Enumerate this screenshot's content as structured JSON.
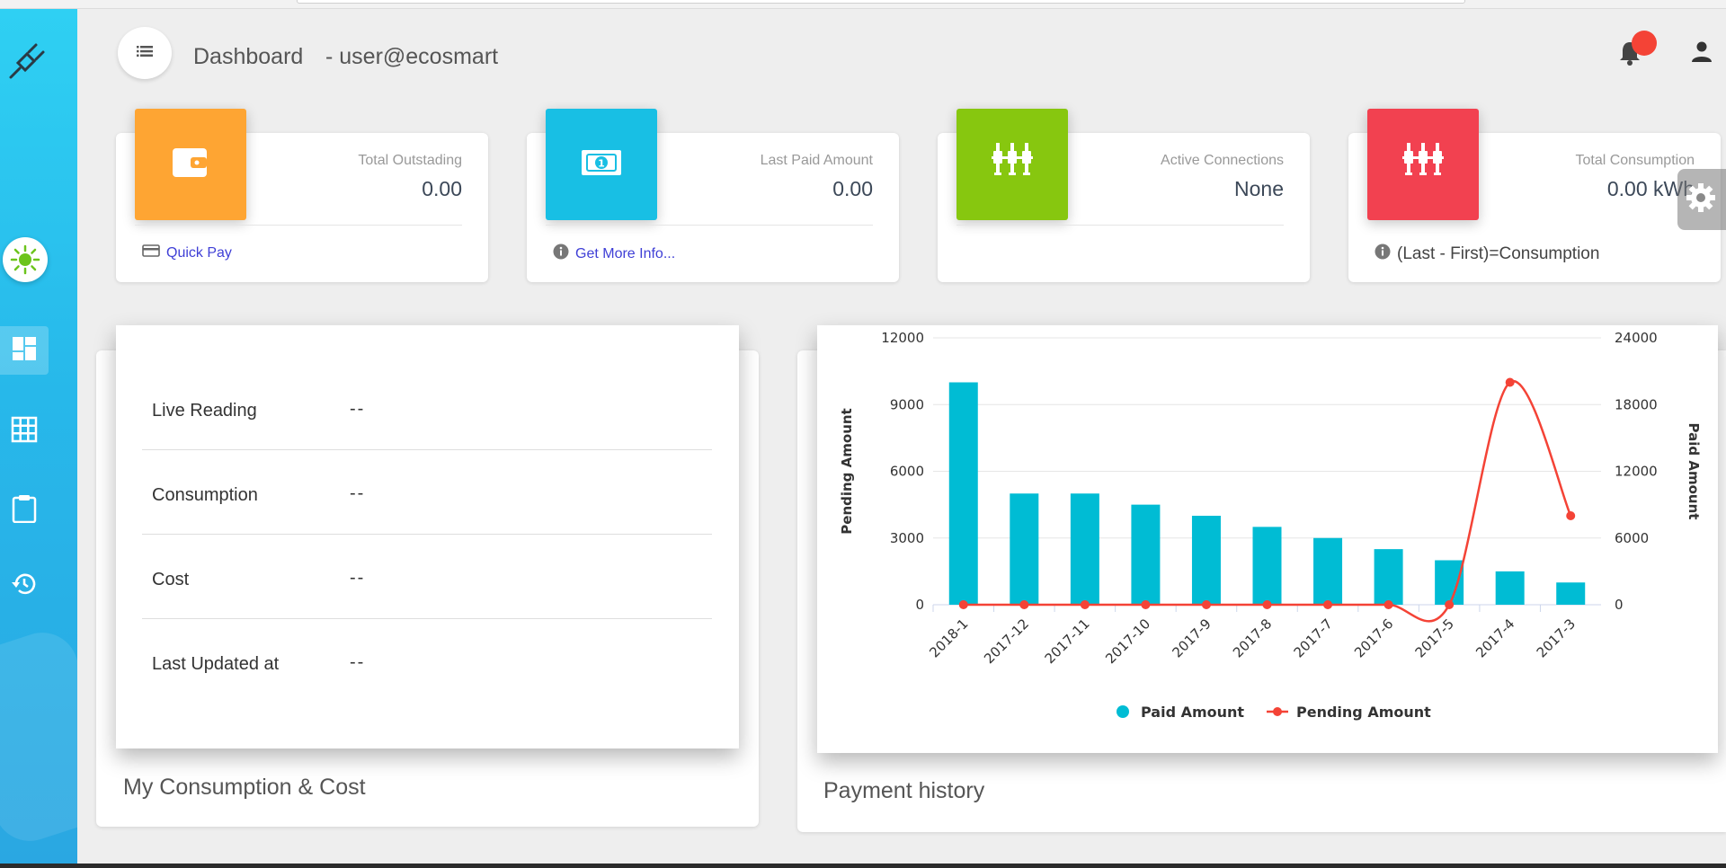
{
  "header": {
    "title": "Dashboard",
    "user": "- user@ecosmart",
    "notification_dot_color": "#f44336"
  },
  "sidebar": {
    "items": [
      {
        "icon": "dashboard-icon",
        "active": true
      },
      {
        "icon": "grid-icon",
        "active": false
      },
      {
        "icon": "clipboard-icon",
        "active": false
      },
      {
        "icon": "history-icon",
        "active": false
      }
    ]
  },
  "stats": [
    {
      "label": "Total Outstading",
      "value": "0.00",
      "footer": "Quick Pay",
      "icon": "wallet-icon",
      "color": "#fea533"
    },
    {
      "label": "Last Paid Amount",
      "value": "0.00",
      "footer": "Get More Info...",
      "icon": "money-icon",
      "color": "#18bfe4"
    },
    {
      "label": "Active Connections",
      "value": "None",
      "footer": "",
      "icon": "plug-icon",
      "color": "#87c70f"
    },
    {
      "label": "Total Consumption",
      "value": "0.00 kWh",
      "footer": "(Last - First)=Consumption",
      "icon": "plug-icon",
      "color": "#f24150"
    }
  ],
  "consumption": {
    "title": "My Consumption & Cost",
    "rows": [
      {
        "label": "Live Reading",
        "value": "--"
      },
      {
        "label": "Consumption",
        "value": "--"
      },
      {
        "label": "Cost",
        "value": "--"
      },
      {
        "label": "Last Updated at",
        "value": "--"
      }
    ]
  },
  "payment": {
    "title": "Payment history"
  },
  "chart_data": {
    "type": "bar",
    "categories": [
      "2018-1",
      "2017-12",
      "2017-11",
      "2017-10",
      "2017-9",
      "2017-8",
      "2017-7",
      "2017-6",
      "2017-5",
      "2017-4",
      "2017-3"
    ],
    "series": [
      {
        "name": "Paid Amount",
        "type": "bar",
        "axis": "right",
        "color": "#00bcd4",
        "values": [
          20000,
          10000,
          10000,
          9000,
          8000,
          7000,
          6000,
          5000,
          4000,
          3000,
          2000
        ]
      },
      {
        "name": "Pending Amount",
        "type": "line",
        "axis": "left",
        "color": "#f44336",
        "values": [
          0,
          0,
          0,
          0,
          0,
          0,
          0,
          0,
          0,
          10000,
          4000
        ]
      }
    ],
    "ylabel": "Pending Amount",
    "y2label": "Paid Amount",
    "ylim": [
      0,
      12000
    ],
    "y2lim": [
      0,
      24000
    ],
    "yticks": [
      "0",
      "3000",
      "6000",
      "9000",
      "12000"
    ],
    "y2ticks": [
      "0",
      "6000",
      "12000",
      "18000",
      "24000"
    ],
    "grid": true,
    "legend": "bottom"
  }
}
